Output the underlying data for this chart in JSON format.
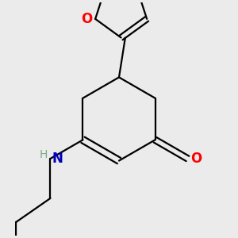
{
  "background_color": "#ebebeb",
  "bond_color": "#000000",
  "bond_width": 1.6,
  "atom_colors": {
    "O": "#ff0000",
    "N": "#0000bb",
    "H": "#7aaa8a",
    "C": "#000000"
  },
  "figsize": [
    3.0,
    3.0
  ],
  "dpi": 100
}
